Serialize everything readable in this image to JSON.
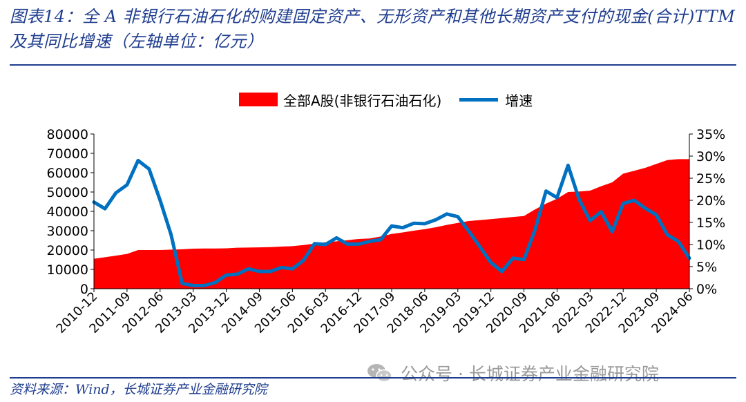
{
  "header": {
    "title": "图表14：全 A 非银行石油石化的购建固定资产、无形资产和其他长期资产支付的现金(合计)TTM及其同比增速（左轴单位：亿元）"
  },
  "legend": {
    "area_label": "全部A股(非银行石油石化)",
    "line_label": "增速"
  },
  "colors": {
    "area": "#ff0000",
    "line": "#0070c0",
    "title": "#1f3d8f"
  },
  "footer": {
    "source": "资料来源：Wind，长城证券产业金融研究院",
    "watermark": "公众号 · 长城证券产业金融研究院",
    "watermark_icon": "wechat-icon"
  },
  "chart_data": {
    "type": "area",
    "x_tick_labels": [
      "2010-12",
      "2011-09",
      "2012-06",
      "2013-03",
      "2013-12",
      "2014-09",
      "2015-06",
      "2016-03",
      "2016-12",
      "2017-09",
      "2018-06",
      "2019-03",
      "2019-12",
      "2020-09",
      "2021-06",
      "2022-03",
      "2022-12",
      "2023-09",
      "2024-06"
    ],
    "x": [
      "2010-12",
      "2011-03",
      "2011-06",
      "2011-09",
      "2011-12",
      "2012-03",
      "2012-06",
      "2012-09",
      "2012-12",
      "2013-03",
      "2013-06",
      "2013-09",
      "2013-12",
      "2014-03",
      "2014-06",
      "2014-09",
      "2014-12",
      "2015-03",
      "2015-06",
      "2015-09",
      "2015-12",
      "2016-03",
      "2016-06",
      "2016-09",
      "2016-12",
      "2017-03",
      "2017-06",
      "2017-09",
      "2017-12",
      "2018-03",
      "2018-06",
      "2018-09",
      "2018-12",
      "2019-03",
      "2019-06",
      "2019-09",
      "2019-12",
      "2020-03",
      "2020-06",
      "2020-09",
      "2020-12",
      "2021-03",
      "2021-06",
      "2021-09",
      "2021-12",
      "2022-03",
      "2022-06",
      "2022-09",
      "2022-12",
      "2023-03",
      "2023-06",
      "2023-09",
      "2023-12",
      "2024-03",
      "2024-06"
    ],
    "series": [
      {
        "name": "全部A股(非银行石油石化)",
        "type": "area",
        "axis": "left",
        "values": [
          15500,
          16300,
          17100,
          18000,
          20000,
          20000,
          20000,
          20200,
          20400,
          20700,
          20800,
          20800,
          20900,
          21200,
          21300,
          21400,
          21500,
          21800,
          22000,
          22600,
          23300,
          24000,
          24500,
          25100,
          25700,
          26000,
          27000,
          28300,
          29100,
          30000,
          30800,
          31800,
          33000,
          34000,
          35000,
          35500,
          36000,
          36500,
          37100,
          37600,
          41000,
          44000,
          46500,
          50000,
          50300,
          50700,
          53000,
          55000,
          59500,
          61000,
          62500,
          64500,
          66500,
          67000,
          67000
        ]
      },
      {
        "name": "增速",
        "type": "line",
        "axis": "right",
        "values": [
          19.6,
          18.1,
          21.7,
          23.5,
          29.0,
          27.1,
          20.0,
          12.2,
          1.2,
          0.7,
          0.7,
          1.4,
          3.1,
          3.3,
          4.5,
          3.9,
          3.9,
          4.8,
          4.5,
          6.4,
          10.2,
          10.0,
          11.5,
          10.1,
          10.1,
          10.7,
          11.1,
          14.2,
          13.8,
          14.8,
          14.7,
          15.6,
          16.9,
          16.3,
          13.0,
          9.5,
          5.9,
          3.9,
          6.9,
          6.6,
          13.3,
          22.1,
          20.6,
          27.9,
          20.2,
          15.4,
          17.4,
          12.9,
          19.3,
          20.0,
          18.2,
          16.7,
          12.2,
          10.7,
          6.9
        ]
      }
    ],
    "ylim_left": [
      0,
      80000
    ],
    "yticks_left": [
      0,
      10000,
      20000,
      30000,
      40000,
      50000,
      60000,
      70000,
      80000
    ],
    "ylim_right": [
      0,
      35
    ],
    "yticks_right": [
      "0%",
      "5%",
      "10%",
      "15%",
      "20%",
      "25%",
      "30%",
      "35%"
    ],
    "grid": false,
    "legend_position": "top-center"
  }
}
